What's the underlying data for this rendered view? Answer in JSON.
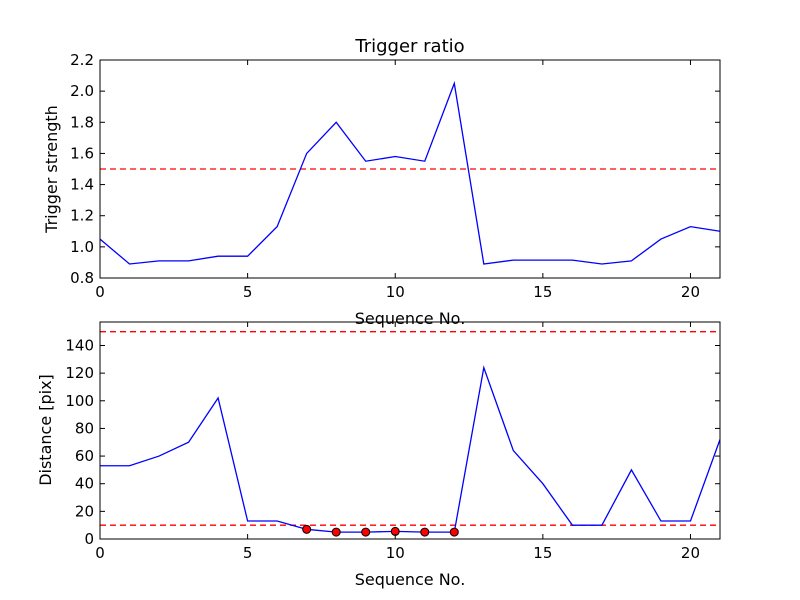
{
  "chart_data": [
    {
      "type": "line",
      "title": "Trigger ratio",
      "xlabel": "Sequence No.",
      "ylabel": "Trigger strength",
      "xlim": [
        0,
        21
      ],
      "ylim": [
        0.8,
        2.2
      ],
      "xticks": [
        "0",
        "5",
        "10",
        "15",
        "20"
      ],
      "yticks": [
        "0.8",
        "1.0",
        "1.2",
        "1.4",
        "1.6",
        "1.8",
        "2.0",
        "2.2"
      ],
      "grid": false,
      "threshold_lines": [
        1.5
      ],
      "line_color": "#0000ff",
      "threshold_color": "#ff0000",
      "series": [
        {
          "x": [
            0,
            1,
            2,
            3,
            4,
            5,
            6,
            7,
            8,
            9,
            10,
            11,
            12,
            13,
            14,
            15,
            16,
            17,
            18,
            19,
            20,
            21
          ],
          "values": [
            1.05,
            0.89,
            0.91,
            0.91,
            0.94,
            0.94,
            1.13,
            1.6,
            1.8,
            1.55,
            1.58,
            1.55,
            2.05,
            0.89,
            0.915,
            0.915,
            0.915,
            0.89,
            0.91,
            1.05,
            1.13,
            1.1
          ]
        }
      ]
    },
    {
      "type": "line",
      "title": "",
      "xlabel": "Sequence No.",
      "ylabel": "Distance [pix]",
      "xlim": [
        0,
        21
      ],
      "ylim": [
        0,
        157
      ],
      "xticks": [
        "0",
        "5",
        "10",
        "15",
        "20"
      ],
      "yticks": [
        "0",
        "20",
        "40",
        "60",
        "80",
        "100",
        "120",
        "140"
      ],
      "grid": false,
      "threshold_lines": [
        150,
        10
      ],
      "line_color": "#0000ff",
      "threshold_color": "#ff0000",
      "marker_color": "#ff0000",
      "series": [
        {
          "x": [
            0,
            1,
            2,
            3,
            4,
            5,
            6,
            7,
            8,
            9,
            10,
            11,
            12,
            13,
            14,
            15,
            16,
            17,
            18,
            19,
            20,
            21
          ],
          "values": [
            53,
            53,
            60,
            70,
            102,
            13,
            13,
            7,
            5,
            5,
            5.5,
            5,
            5,
            124,
            64,
            40,
            10,
            10,
            50,
            13,
            13,
            72
          ]
        }
      ],
      "markers": {
        "x": [
          7,
          8,
          9,
          10,
          11,
          12
        ],
        "values": [
          7,
          5,
          5,
          5.5,
          5,
          5
        ]
      }
    }
  ]
}
